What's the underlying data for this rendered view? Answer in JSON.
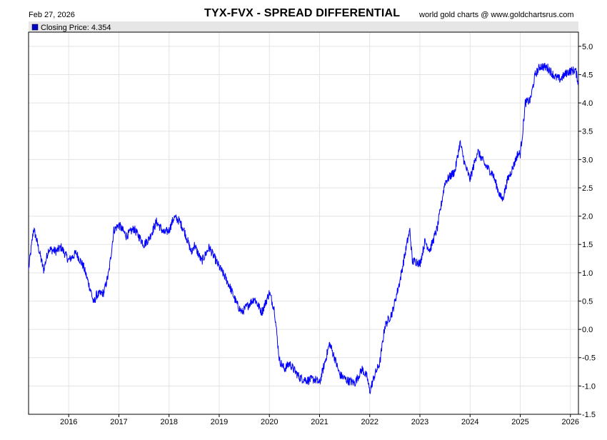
{
  "header": {
    "date": "Feb 27, 2026",
    "title": "TYX-FVX  -  SPREAD DIFFERENTIAL",
    "source": "world gold charts @ www.goldchartsrus.com"
  },
  "legend": {
    "label": "Closing Price: 4.354",
    "swatch_color": "#0000cc"
  },
  "colors": {
    "line": "#0000ff",
    "grid": "#e3e3e3",
    "legend_bg": "#e6e6e6"
  },
  "chart_data": {
    "type": "line",
    "title": "TYX-FVX  -  SPREAD DIFFERENTIAL",
    "xlabel": "",
    "ylabel": "",
    "xlim": [
      2015.2,
      2026.16
    ],
    "ylim": [
      -1.5,
      5.25
    ],
    "y_ticks": [
      5.0,
      4.5,
      4.0,
      3.5,
      3.0,
      2.5,
      2.0,
      1.5,
      1.0,
      0.5,
      0.0,
      -0.5,
      -1.0,
      -1.5
    ],
    "y_tick_labels": [
      "5.0",
      "4.5",
      "4.0",
      "3.5",
      "3.0",
      "2.5",
      "2.0",
      "1.5",
      "1.0",
      "0.5",
      "0.0",
      "-0.5",
      "-1.0",
      "-1.5"
    ],
    "x_ticks": [
      2016,
      2017,
      2018,
      2019,
      2020,
      2021,
      2022,
      2023,
      2024,
      2025,
      2026
    ],
    "x_tick_labels": [
      "2016",
      "2017",
      "2018",
      "2019",
      "2020",
      "2021",
      "2022",
      "2023",
      "2024",
      "2025",
      "2026"
    ],
    "series": [
      {
        "name": "Closing Price",
        "last_value": 4.354,
        "x": [
          2015.2,
          2015.3,
          2015.35,
          2015.5,
          2015.6,
          2015.75,
          2015.85,
          2016.0,
          2016.15,
          2016.3,
          2016.45,
          2016.5,
          2016.55,
          2016.7,
          2016.8,
          2016.9,
          2017.0,
          2017.15,
          2017.3,
          2017.5,
          2017.6,
          2017.75,
          2017.9,
          2018.0,
          2018.1,
          2018.2,
          2018.3,
          2018.45,
          2018.5,
          2018.65,
          2018.8,
          2019.0,
          2019.1,
          2019.2,
          2019.35,
          2019.45,
          2019.6,
          2019.7,
          2019.85,
          2020.0,
          2020.1,
          2020.2,
          2020.3,
          2020.4,
          2020.6,
          2020.75,
          2020.9,
          2021.0,
          2021.1,
          2021.2,
          2021.3,
          2021.4,
          2021.55,
          2021.7,
          2021.85,
          2021.95,
          2022.0,
          2022.1,
          2022.2,
          2022.3,
          2022.45,
          2022.6,
          2022.75,
          2022.8,
          2022.85,
          2022.95,
          2023.0,
          2023.1,
          2023.2,
          2023.35,
          2023.5,
          2023.7,
          2023.8,
          2023.9,
          2024.0,
          2024.15,
          2024.3,
          2024.45,
          2024.6,
          2024.65,
          2024.75,
          2024.85,
          2024.95,
          2025.0,
          2025.05,
          2025.1,
          2025.2,
          2025.3,
          2025.4,
          2025.55,
          2025.7,
          2025.8,
          2025.95,
          2026.1,
          2026.16
        ],
        "values": [
          1.05,
          1.78,
          1.62,
          1.05,
          1.42,
          1.38,
          1.45,
          1.22,
          1.35,
          1.1,
          0.65,
          0.45,
          0.6,
          0.65,
          1.0,
          1.75,
          1.85,
          1.65,
          1.78,
          1.5,
          1.6,
          1.9,
          1.7,
          1.75,
          1.98,
          1.92,
          1.75,
          1.35,
          1.5,
          1.2,
          1.45,
          1.1,
          0.95,
          0.78,
          0.45,
          0.3,
          0.45,
          0.55,
          0.3,
          0.65,
          0.35,
          -0.55,
          -0.7,
          -0.6,
          -0.85,
          -0.9,
          -0.88,
          -0.95,
          -0.6,
          -0.25,
          -0.5,
          -0.8,
          -0.9,
          -0.95,
          -0.7,
          -0.85,
          -1.1,
          -0.8,
          -0.6,
          0.05,
          0.3,
          0.85,
          1.55,
          1.75,
          1.2,
          1.2,
          1.15,
          1.55,
          1.4,
          1.8,
          2.6,
          2.8,
          3.3,
          2.9,
          2.65,
          3.15,
          2.9,
          2.75,
          2.35,
          2.3,
          2.65,
          2.85,
          3.1,
          3.1,
          3.5,
          4.0,
          4.05,
          4.5,
          4.65,
          4.62,
          4.45,
          4.42,
          4.55,
          4.58,
          4.35
        ]
      }
    ]
  }
}
